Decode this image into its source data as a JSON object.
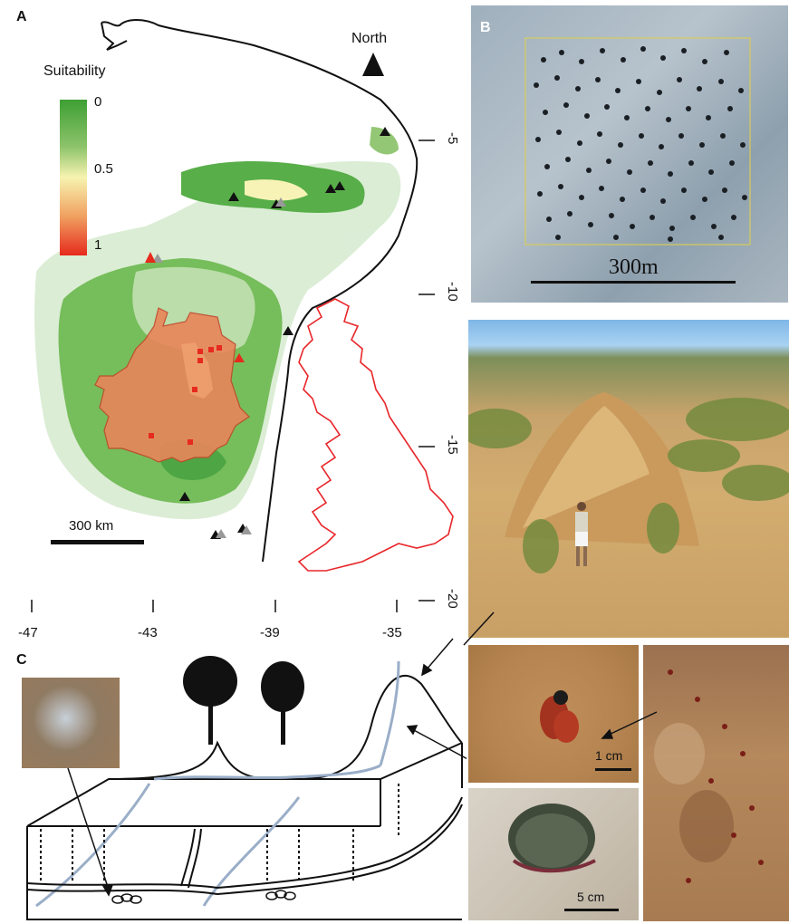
{
  "panels": {
    "a": {
      "letter": "A",
      "north_label": "North",
      "legend": {
        "title": "Suitability",
        "ticks": [
          "0",
          "0.5",
          "1"
        ]
      },
      "scale_bar": {
        "label": "300 km"
      },
      "longitude_ticks": [
        "-47",
        "-43",
        "-39",
        "-35"
      ],
      "latitude_ticks": [
        "-5",
        "-10",
        "-15",
        "-20"
      ]
    },
    "b": {
      "letter": "B",
      "scale_label": "300m"
    },
    "c": {
      "letter": "C",
      "scale_bee": "1 cm",
      "scale_hole": "5 cm"
    }
  },
  "colors": {
    "suitability_high": "#e62a1d",
    "suitability_mid": "#f7f3b0",
    "suitability_low": "#4aa83a",
    "mound_region": "#e9855a",
    "uk_outline": "#e8262a",
    "tunnel": "#9aaec8"
  }
}
